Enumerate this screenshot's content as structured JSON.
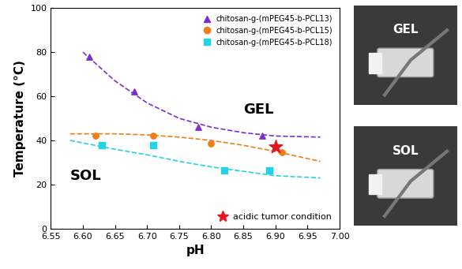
{
  "chart_data": {
    "type": "scatter",
    "x_label": "pH",
    "y_label": "Temperature (°C)",
    "xlim": [
      6.55,
      7.0
    ],
    "xticks": [
      {
        "value": 6.55,
        "label": "6.55"
      },
      {
        "value": 6.6,
        "label": "6.60"
      },
      {
        "value": 6.65,
        "label": "6.65"
      },
      {
        "value": 6.7,
        "label": "6.70"
      },
      {
        "value": 6.75,
        "label": "6.75"
      },
      {
        "value": 6.8,
        "label": "6.80"
      },
      {
        "value": 6.85,
        "label": "6.85"
      },
      {
        "value": 6.9,
        "label": "6.90"
      },
      {
        "value": 6.95,
        "label": "6.95"
      },
      {
        "value": 7.0,
        "label": "7.00"
      }
    ],
    "ylim": [
      0,
      100
    ],
    "yticks": [
      0,
      20,
      40,
      60,
      80,
      100
    ],
    "grid": false,
    "legend": "upper right",
    "series": [
      {
        "name": "chitosan-g-(mPEG45-b-PCL13)",
        "color": "#7b2fd0",
        "marker": "triangle",
        "x": [
          6.61,
          6.68,
          6.78,
          6.88
        ],
        "values": [
          78,
          62,
          46,
          42
        ],
        "fit": {
          "x": [
            6.6,
            6.65,
            6.7,
            6.75,
            6.8,
            6.85,
            6.9,
            6.97
          ],
          "values": [
            80,
            67,
            57,
            50,
            46,
            43.5,
            42,
            41.5
          ]
        }
      },
      {
        "name": "chitosan-g-(mPEG45-b-PCL15)",
        "color": "#f07d18",
        "marker": "circle",
        "x": [
          6.62,
          6.71,
          6.8,
          6.91
        ],
        "values": [
          42,
          42,
          38.5,
          34.5
        ],
        "fit": {
          "x": [
            6.58,
            6.65,
            6.7,
            6.75,
            6.8,
            6.85,
            6.9,
            6.97
          ],
          "values": [
            43,
            43,
            42.5,
            41.5,
            40,
            37.8,
            35,
            30.5
          ]
        }
      },
      {
        "name": "chitosan-g-(mPEG45-b-PCL18)",
        "color": "#22d3e6",
        "marker": "square",
        "x": [
          6.63,
          6.71,
          6.82,
          6.89
        ],
        "values": [
          38,
          38,
          26.5,
          26.5
        ],
        "fit": {
          "x": [
            6.58,
            6.65,
            6.7,
            6.75,
            6.8,
            6.85,
            6.9,
            6.97
          ],
          "values": [
            40,
            36,
            33.5,
            30.5,
            28,
            26,
            24,
            23
          ]
        }
      }
    ],
    "highlight": {
      "name": "acidic tumor condition",
      "color": "#e8141c",
      "marker": "star",
      "x": [
        6.9
      ],
      "values": [
        37
      ],
      "legend": "lower right"
    },
    "annotations": [
      "GEL",
      "SOL"
    ],
    "panels": [
      {
        "label": "GEL"
      },
      {
        "label": "SOL"
      }
    ]
  }
}
